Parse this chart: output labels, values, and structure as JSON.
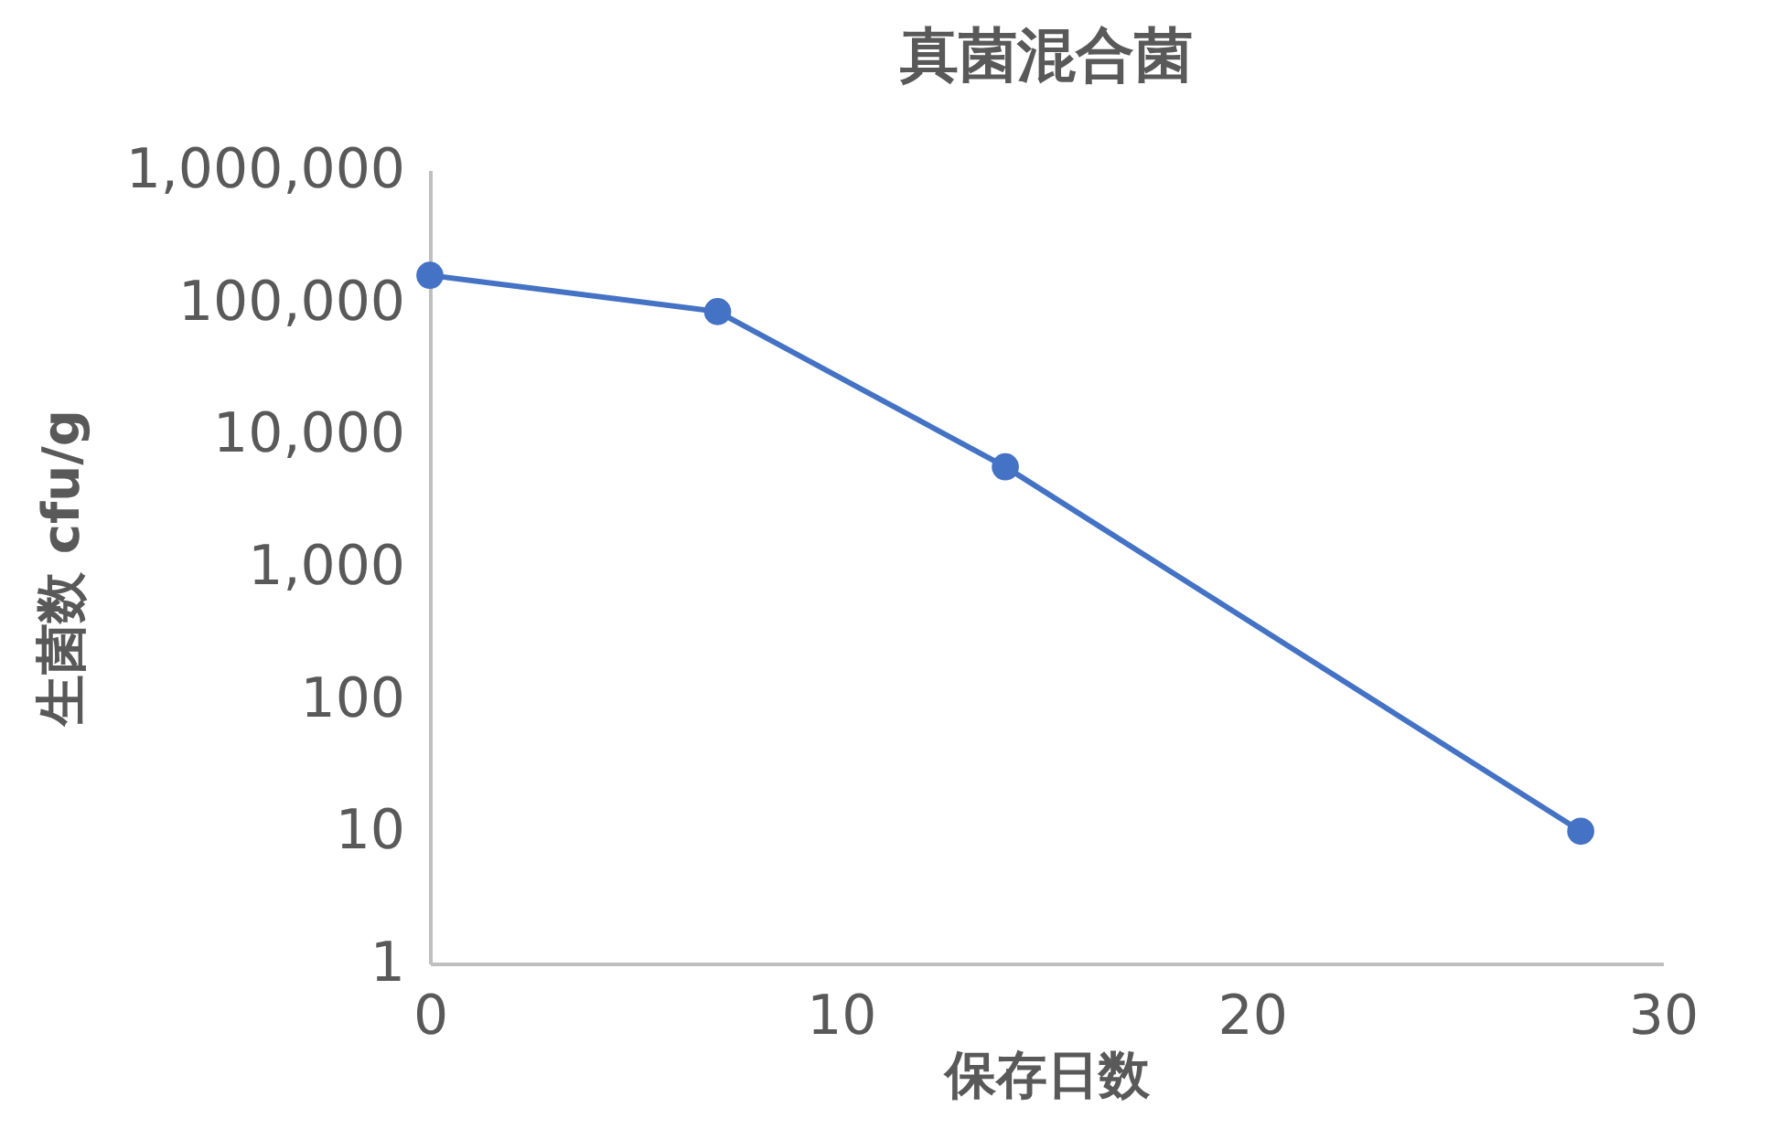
{
  "chart_data": {
    "type": "line",
    "title": "真菌混合菌",
    "xlabel": "保存日数",
    "ylabel": "生菌数 cfu/g",
    "x": [
      0,
      7,
      14,
      28
    ],
    "series": [
      {
        "color": "#4472c4",
        "values": [
          160000,
          85000,
          5700,
          10
        ]
      }
    ],
    "xlim": [
      0,
      30
    ],
    "xticks": [
      0,
      10,
      20,
      30
    ],
    "ylim": [
      1,
      1000000
    ],
    "yticks": [
      1,
      10,
      100,
      {
        "value": 1000,
        "label": "1,000"
      },
      {
        "value": 10000,
        "label": "10,000"
      },
      {
        "value": 100000,
        "label": "100,000"
      },
      {
        "value": 1000000,
        "label": "1,000,000"
      }
    ],
    "log": "y",
    "marker": "circle",
    "line_style": "solid",
    "grid": false,
    "legend": false
  }
}
